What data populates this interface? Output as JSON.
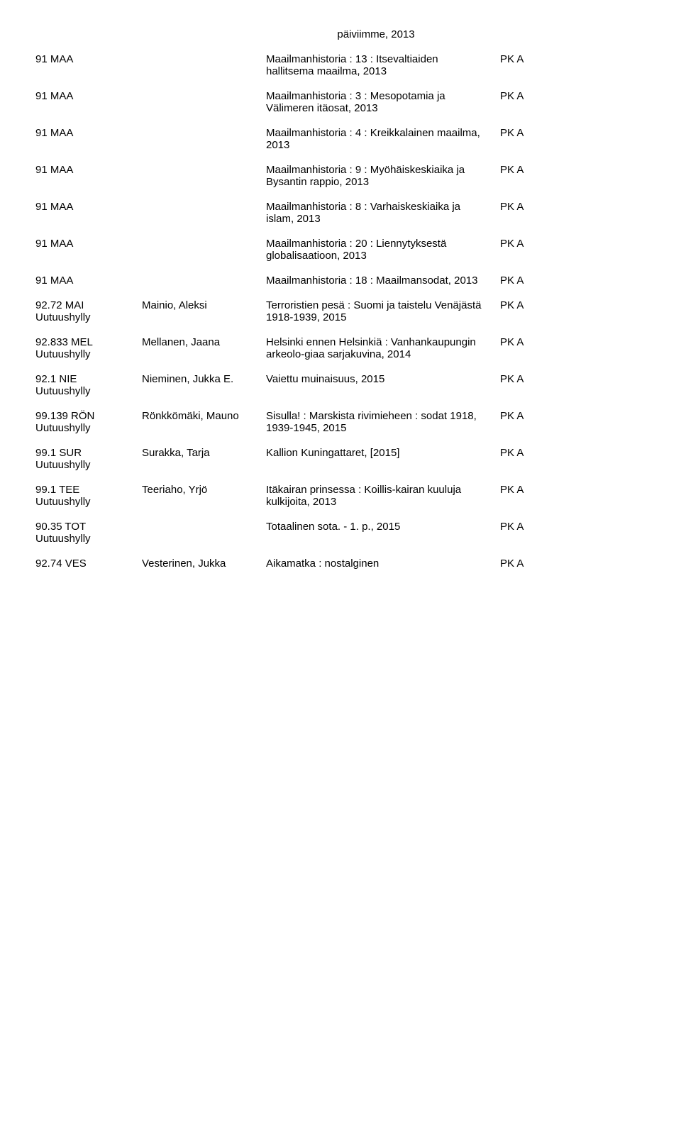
{
  "header": "päiviimme, 2013",
  "rows": [
    {
      "code": "91 MAA",
      "sub": "",
      "author": "",
      "desc": "Maailmanhistoria : 13 : Itsevaltiaiden hallitsema maailma, 2013",
      "tag": "PK A"
    },
    {
      "code": "91 MAA",
      "sub": "",
      "author": "",
      "desc": "Maailmanhistoria : 3 : Mesopotamia ja Välimeren itäosat, 2013",
      "tag": "PK A"
    },
    {
      "code": "91 MAA",
      "sub": "",
      "author": "",
      "desc": "Maailmanhistoria : 4 : Kreikkalainen maailma, 2013",
      "tag": "PK A"
    },
    {
      "code": "91 MAA",
      "sub": "",
      "author": "",
      "desc": "Maailmanhistoria : 9 : Myöhäiskeskiaika ja Bysantin rappio, 2013",
      "tag": "PK A"
    },
    {
      "code": "91 MAA",
      "sub": "",
      "author": "",
      "desc": "Maailmanhistoria : 8 : Varhaiskeskiaika ja islam, 2013",
      "tag": "PK A"
    },
    {
      "code": "91 MAA",
      "sub": "",
      "author": "",
      "desc": "Maailmanhistoria : 20 : Liennytyksestä globalisaatioon, 2013",
      "tag": "PK A"
    },
    {
      "code": "91 MAA",
      "sub": "",
      "author": "",
      "desc": "Maailmanhistoria : 18 : Maailmansodat, 2013",
      "tag": "PK A"
    },
    {
      "code": "92.72 MAI",
      "sub": "Uutuushylly",
      "author": "Mainio, Aleksi",
      "desc": "Terroristien pesä : Suomi ja taistelu Venäjästä 1918-1939, 2015",
      "tag": "PK A"
    },
    {
      "code": "92.833 MEL",
      "sub": "Uutuushylly",
      "author": "Mellanen, Jaana",
      "desc": "Helsinki ennen Helsinkiä : Vanhankaupungin arkeolo-giaa sarjakuvina, 2014",
      "tag": "PK A"
    },
    {
      "code": "92.1 NIE",
      "sub": "Uutuushylly",
      "author": "Nieminen, Jukka E.",
      "desc": "Vaiettu muinaisuus, 2015",
      "tag": "PK A"
    },
    {
      "code": "99.139 RÖN",
      "sub": "Uutuushylly",
      "author": "Rönkkömäki, Mauno",
      "desc": "Sisulla! : Marskista rivimieheen : sodat 1918, 1939-1945, 2015",
      "tag": "PK A"
    },
    {
      "code": "99.1 SUR",
      "sub": "Uutuushylly",
      "author": "Surakka, Tarja",
      "desc": "Kallion Kuningattaret, [2015]",
      "tag": "PK A"
    },
    {
      "code": "99.1 TEE",
      "sub": "Uutuushylly",
      "author": "Teeriaho, Yrjö",
      "desc": "Itäkairan prinsessa : Koillis-kairan kuuluja kulkijoita, 2013",
      "tag": "PK A"
    },
    {
      "code": "90.35 TOT",
      "sub": "Uutuushylly",
      "author": "",
      "desc": "Totaalinen sota. - 1. p., 2015",
      "tag": "PK A"
    },
    {
      "code": "92.74 VES",
      "sub": "",
      "author": "Vesterinen, Jukka",
      "desc": "Aikamatka : nostalginen",
      "tag": "PK A"
    }
  ]
}
